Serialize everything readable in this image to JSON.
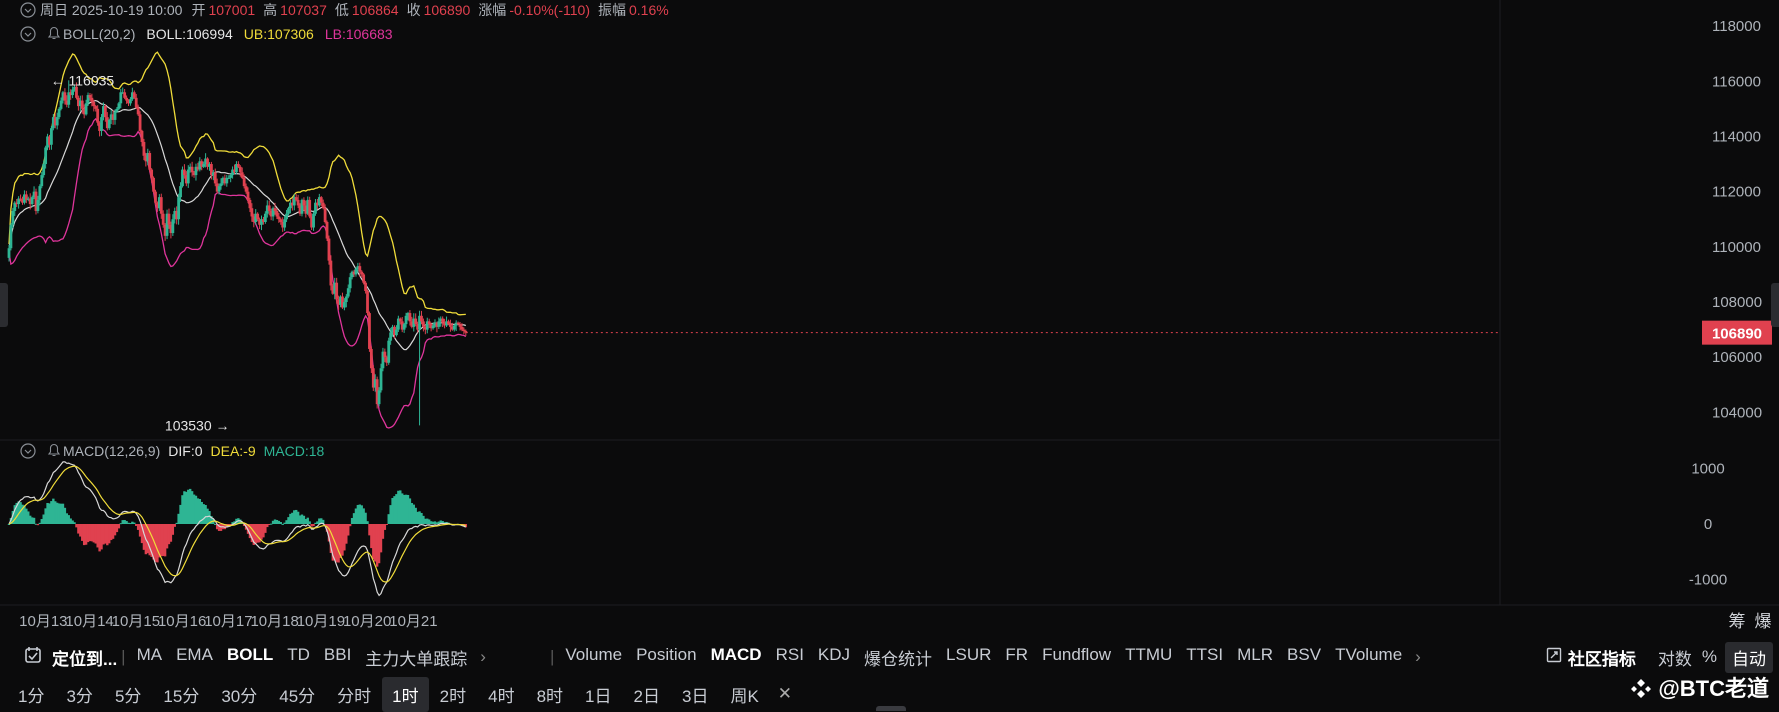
{
  "header": {
    "title": "周日 2025-10-19 10:00",
    "open_label": "开",
    "open": "107001",
    "high_label": "高",
    "high": "107037",
    "low_label": "低",
    "low": "106864",
    "close_label": "收",
    "close": "106890",
    "change_label": "涨幅",
    "change": "-0.10%(-110)",
    "amp_label": "振幅",
    "amp": "0.16%"
  },
  "boll": {
    "label": "BOLL(20,2)",
    "boll": "BOLL:106994",
    "ub": "UB:107306",
    "lb": "LB:106683"
  },
  "macd": {
    "label": "MACD(12,26,9)",
    "dif": "DIF:0",
    "dea": "DEA:-9",
    "macd": "MACD:18"
  },
  "colors": {
    "up": "#2eb594",
    "down": "#e0414f",
    "boll_mid": "#d8d8d8",
    "boll_ub": "#f0dc3a",
    "boll_lb": "#e0359c",
    "dif": "#d8d8d8",
    "dea": "#f0dc3a",
    "price_tag": "#e0414f",
    "background": "#0b0b0c"
  },
  "chart_data": [
    {
      "type": "candlestick",
      "title": "",
      "ylim": [
        103000,
        118800
      ],
      "yticks": [
        104000,
        106000,
        108000,
        110000,
        112000,
        114000,
        116000,
        118000
      ],
      "xlabels": [
        "10月13",
        "10月14",
        "10月15",
        "10月16",
        "10月17",
        "10月18",
        "10月19",
        "10月20",
        "10月21"
      ],
      "x_start": "2025-10-13 00:00",
      "bar_interval": "1时",
      "current_price": 106890,
      "annotations": [
        {
          "text": "← 116035",
          "value": 116035,
          "date": "2025-10-13 19:00"
        },
        {
          "text": "103530 →",
          "value": 103530,
          "date": "2025-10-17 21:00"
        }
      ],
      "candles": [
        {
          "c": 109950
        },
        {
          "c": 110800
        },
        {
          "c": 111300
        },
        {
          "c": 111600
        },
        {
          "c": 111550
        },
        {
          "c": 111750
        },
        {
          "c": 111700
        },
        {
          "c": 111600
        },
        {
          "c": 111900
        },
        {
          "c": 111700
        },
        {
          "c": 111750
        },
        {
          "c": 111550
        },
        {
          "c": 111800
        },
        {
          "c": 112000
        },
        {
          "c": 111300
        },
        {
          "c": 111700
        },
        {
          "c": 112200
        },
        {
          "c": 112600
        },
        {
          "c": 113000
        },
        {
          "c": 113600
        },
        {
          "c": 114000
        },
        {
          "c": 113700
        },
        {
          "c": 114300
        },
        {
          "c": 114700
        },
        {
          "c": 114400
        },
        {
          "c": 114700
        },
        {
          "c": 115000
        },
        {
          "c": 115300
        },
        {
          "c": 115600
        },
        {
          "c": 115300
        },
        {
          "c": 115150
        },
        {
          "c": 115600
        },
        {
          "c": 115500
        },
        {
          "c": 115700
        },
        {
          "c": 115800
        },
        {
          "c": 115400
        },
        {
          "c": 115100
        },
        {
          "c": 115300
        },
        {
          "c": 115000
        },
        {
          "c": 114800
        },
        {
          "c": 115200
        },
        {
          "c": 115500
        },
        {
          "c": 115400
        },
        {
          "c": 115250
        },
        {
          "c": 115100
        },
        {
          "c": 115000
        },
        {
          "c": 114500
        },
        {
          "c": 114200
        },
        {
          "c": 114700
        },
        {
          "c": 115100
        },
        {
          "c": 114700
        },
        {
          "c": 114300
        },
        {
          "c": 114600
        },
        {
          "c": 114800
        },
        {
          "c": 114600
        },
        {
          "c": 114900
        },
        {
          "c": 115000
        },
        {
          "c": 115200
        },
        {
          "c": 115600
        },
        {
          "c": 115600
        },
        {
          "c": 115400
        },
        {
          "c": 115300
        },
        {
          "c": 115200
        },
        {
          "c": 115350
        },
        {
          "c": 115600
        },
        {
          "c": 115400
        },
        {
          "c": 115050
        },
        {
          "c": 114800
        },
        {
          "c": 114200
        },
        {
          "c": 113800
        },
        {
          "c": 113300
        },
        {
          "c": 113100
        },
        {
          "c": 113400
        },
        {
          "c": 112800
        },
        {
          "c": 112500
        },
        {
          "c": 112000
        },
        {
          "c": 111600
        },
        {
          "c": 111400
        },
        {
          "c": 111800
        },
        {
          "c": 111200
        },
        {
          "c": 110800
        },
        {
          "c": 110400
        },
        {
          "c": 111200
        },
        {
          "c": 110800
        },
        {
          "c": 110500
        },
        {
          "c": 111000
        },
        {
          "c": 111300
        },
        {
          "c": 111000
        },
        {
          "c": 111800
        },
        {
          "c": 112200
        },
        {
          "c": 112800
        },
        {
          "c": 112600
        },
        {
          "c": 112300
        },
        {
          "c": 112800
        },
        {
          "c": 112900
        },
        {
          "c": 112700
        },
        {
          "c": 112600
        },
        {
          "c": 112900
        },
        {
          "c": 112800
        },
        {
          "c": 113100
        },
        {
          "c": 112900
        },
        {
          "c": 113000
        },
        {
          "c": 113200
        },
        {
          "c": 112900
        },
        {
          "c": 113000
        },
        {
          "c": 112600
        },
        {
          "c": 112700
        },
        {
          "c": 112300
        },
        {
          "c": 112000
        },
        {
          "c": 112200
        },
        {
          "c": 112300
        },
        {
          "c": 112500
        },
        {
          "c": 112300
        },
        {
          "c": 112500
        },
        {
          "c": 112500
        },
        {
          "c": 112600
        },
        {
          "c": 112800
        },
        {
          "c": 112700
        },
        {
          "c": 113000
        },
        {
          "c": 112900
        },
        {
          "c": 112700
        },
        {
          "c": 112500
        },
        {
          "c": 112200
        },
        {
          "c": 112000
        },
        {
          "c": 111700
        },
        {
          "c": 111400
        },
        {
          "c": 111100
        },
        {
          "c": 110900
        },
        {
          "c": 111200
        },
        {
          "c": 111000
        },
        {
          "c": 110800
        },
        {
          "c": 111000
        },
        {
          "c": 110900
        },
        {
          "c": 111200
        },
        {
          "c": 111500
        },
        {
          "c": 111300
        },
        {
          "c": 111100
        },
        {
          "c": 111400
        },
        {
          "c": 111300
        },
        {
          "c": 111100
        },
        {
          "c": 111000
        },
        {
          "c": 110900
        },
        {
          "c": 110700
        },
        {
          "c": 111000
        },
        {
          "c": 111200
        },
        {
          "c": 111400
        },
        {
          "c": 111600
        },
        {
          "c": 111500
        },
        {
          "c": 111800
        },
        {
          "c": 111700
        },
        {
          "c": 111500
        },
        {
          "c": 111200
        },
        {
          "c": 111700
        },
        {
          "c": 111500
        },
        {
          "c": 111200
        },
        {
          "c": 111700
        },
        {
          "c": 111100
        },
        {
          "c": 110700
        },
        {
          "c": 111200
        },
        {
          "c": 111600
        },
        {
          "c": 111500
        },
        {
          "c": 111800
        },
        {
          "c": 111600
        },
        {
          "c": 111400
        },
        {
          "c": 110900
        },
        {
          "c": 110300
        },
        {
          "c": 109500
        },
        {
          "c": 108600
        },
        {
          "c": 108300
        },
        {
          "c": 108700
        },
        {
          "c": 108100
        },
        {
          "c": 107900
        },
        {
          "c": 108200
        },
        {
          "c": 107800
        },
        {
          "c": 108000
        },
        {
          "c": 108200
        },
        {
          "c": 108500
        },
        {
          "c": 108900
        },
        {
          "c": 109100
        },
        {
          "c": 109000
        },
        {
          "c": 109200
        },
        {
          "c": 109300
        },
        {
          "c": 109100
        },
        {
          "c": 109000
        },
        {
          "c": 108700
        },
        {
          "c": 108400
        },
        {
          "c": 107600
        },
        {
          "c": 106300
        },
        {
          "c": 105600
        },
        {
          "c": 104900
        },
        {
          "c": 105200
        },
        {
          "c": 104300
        },
        {
          "c": 104800
        },
        {
          "c": 105600
        },
        {
          "c": 106200
        },
        {
          "c": 106000
        },
        {
          "c": 105800
        },
        {
          "c": 106600
        },
        {
          "c": 106900
        },
        {
          "c": 107100
        },
        {
          "c": 106800
        },
        {
          "c": 107000
        },
        {
          "c": 107400
        },
        {
          "c": 107300
        },
        {
          "c": 107000
        },
        {
          "c": 107200
        },
        {
          "c": 107500
        },
        {
          "c": 107600
        },
        {
          "c": 107300
        },
        {
          "c": 107100
        },
        {
          "c": 107400
        },
        {
          "c": 107200
        },
        {
          "c": 107000
        },
        {
          "c": 107500
        },
        {
          "c": 107300
        },
        {
          "c": 107100
        },
        {
          "c": 107000
        },
        {
          "c": 107300
        },
        {
          "c": 107200
        },
        {
          "c": 107050
        },
        {
          "c": 107150
        },
        {
          "c": 107250
        },
        {
          "c": 107100
        },
        {
          "c": 107300
        },
        {
          "c": 107400
        },
        {
          "c": 107250
        },
        {
          "c": 107150
        },
        {
          "c": 107300
        },
        {
          "c": 107200
        },
        {
          "c": 107100
        },
        {
          "c": 107000
        },
        {
          "c": 107150
        },
        {
          "c": 107250
        },
        {
          "c": 107200
        },
        {
          "c": 107100
        },
        {
          "c": 107000
        },
        {
          "c": 106950
        },
        {
          "c": 106890
        }
      ]
    },
    {
      "type": "macd",
      "ylim": [
        -1400,
        1400
      ],
      "yticks": [
        1000,
        0,
        -1000
      ],
      "series": [
        {
          "name": "DIF"
        },
        {
          "name": "DEA"
        },
        {
          "name": "MACD"
        }
      ]
    }
  ],
  "price_axis": {
    "current_label": "106890"
  },
  "x_axis_right_labels": {
    "chips": "筹",
    "liq": "爆"
  },
  "indicator_bar": {
    "locate": "定位到...",
    "main": [
      "MA",
      "EMA",
      "BOLL",
      "TD",
      "BBI",
      "主力大单跟踪"
    ],
    "main_active": "BOLL",
    "sub": [
      "Volume",
      "Position",
      "MACD",
      "RSI",
      "KDJ",
      "爆仓统计",
      "LSUR",
      "FR",
      "Fundflow",
      "TTMU",
      "TTSI",
      "MLR",
      "BSV",
      "TVolume"
    ],
    "sub_active": "MACD",
    "community": "社区指标",
    "log": "对数",
    "pct": "%",
    "auto": "自动"
  },
  "timeframes": {
    "items": [
      "1分",
      "3分",
      "5分",
      "15分",
      "30分",
      "45分",
      "分时",
      "1时",
      "2时",
      "4时",
      "8时",
      "1日",
      "2日",
      "3日",
      "周K"
    ],
    "active": "1时"
  },
  "watermark": "BTC老道"
}
